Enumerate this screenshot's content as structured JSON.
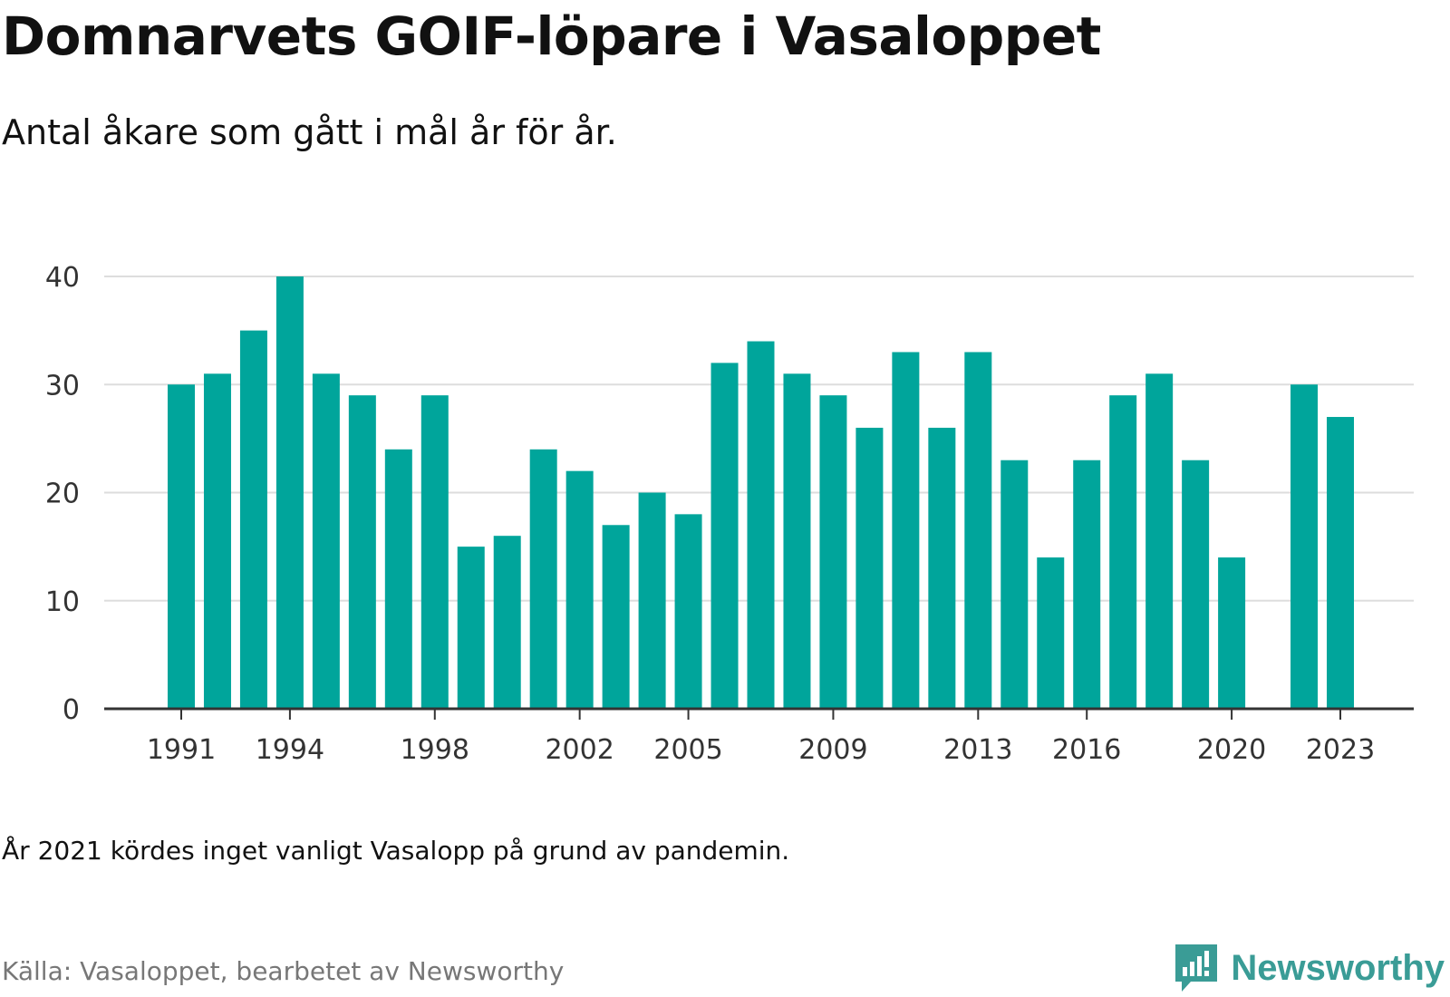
{
  "header": {
    "title": "Domnarvets GOIF-löpare i Vasaloppet",
    "subtitle": "Antal åkare som gått i mål år för år."
  },
  "footer": {
    "note": "År 2021 kördes inget vanligt Vasalopp på grund av pandemin.",
    "source": "Källa: Vasaloppet, bearbetet av Newsworthy",
    "brand_name": "Newsworthy",
    "brand_icon": "newsworthy-logo-icon"
  },
  "colors": {
    "bar": "#00A59B",
    "brand": "#3A9C96",
    "grid": "#DDDDDD",
    "axis": "#333333"
  },
  "chart_data": {
    "type": "bar",
    "title": "Domnarvets GOIF-löpare i Vasaloppet",
    "subtitle": "Antal åkare som gått i mål år för år.",
    "xlabel": "",
    "ylabel": "",
    "x": [
      1991,
      1992,
      1993,
      1994,
      1995,
      1996,
      1997,
      1998,
      1999,
      2000,
      2001,
      2002,
      2003,
      2004,
      2005,
      2006,
      2007,
      2008,
      2009,
      2010,
      2011,
      2012,
      2013,
      2014,
      2015,
      2016,
      2017,
      2018,
      2019,
      2020,
      2021,
      2022,
      2023
    ],
    "values": [
      30,
      31,
      35,
      40,
      31,
      29,
      24,
      29,
      15,
      16,
      24,
      22,
      17,
      20,
      18,
      32,
      34,
      31,
      29,
      26,
      33,
      26,
      33,
      23,
      14,
      23,
      29,
      31,
      23,
      14,
      null,
      30,
      27
    ],
    "xticks": [
      1991,
      1994,
      1998,
      2002,
      2005,
      2009,
      2013,
      2016,
      2020,
      2023
    ],
    "yticks": [
      0,
      10,
      20,
      30,
      40
    ],
    "ylim": [
      0,
      40
    ],
    "grid": true,
    "legend": "none"
  }
}
